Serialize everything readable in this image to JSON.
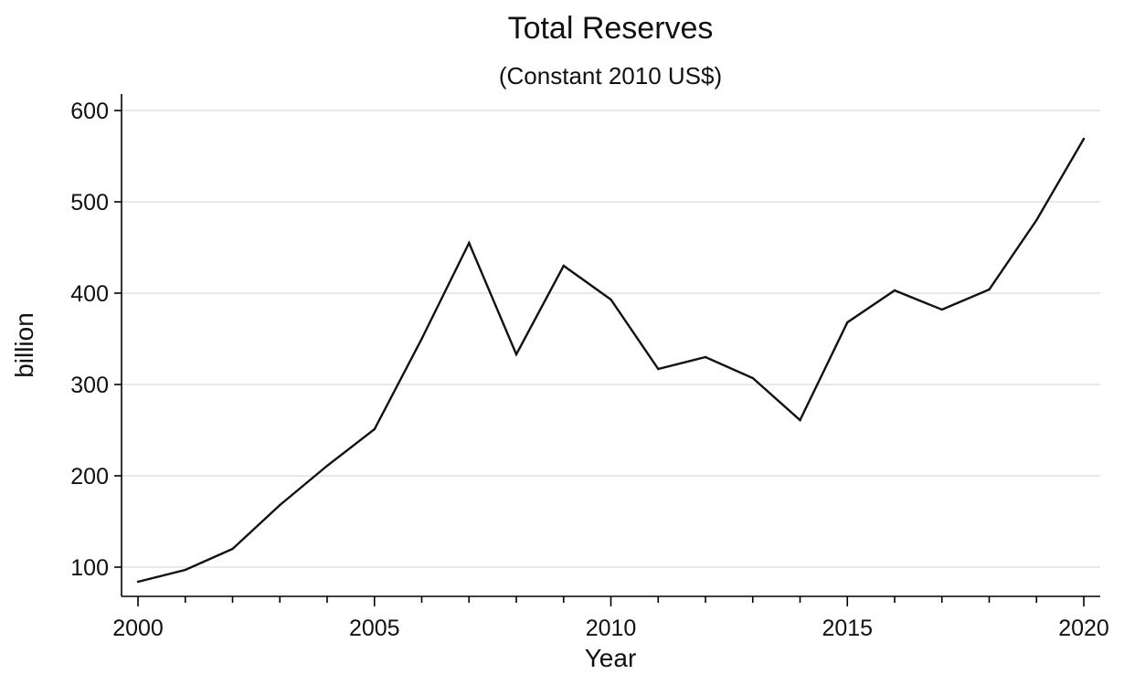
{
  "chart_data": {
    "type": "line",
    "title": "Total Reserves",
    "subtitle": "(Constant 2010 US$)",
    "xlabel": "Year",
    "ylabel": "billion",
    "xlim": [
      2000,
      2020
    ],
    "ylim": [
      68,
      618
    ],
    "xticks": [
      2000,
      2005,
      2010,
      2015,
      2020
    ],
    "yticks": [
      100,
      200,
      300,
      400,
      500,
      600
    ],
    "x_minor_ticks": [
      2001,
      2002,
      2003,
      2004,
      2006,
      2007,
      2008,
      2009,
      2011,
      2012,
      2013,
      2014,
      2016,
      2017,
      2018,
      2019
    ],
    "grid": "horizontal",
    "legend": "none",
    "series": [
      {
        "color": "#111111",
        "x": [
          2000,
          2001,
          2002,
          2003,
          2004,
          2005,
          2006,
          2007,
          2008,
          2009,
          2010,
          2011,
          2012,
          2013,
          2014,
          2015,
          2016,
          2017,
          2018,
          2019,
          2020
        ],
        "values": [
          84,
          97,
          120,
          168,
          211,
          251,
          350,
          455,
          333,
          430,
          393,
          317,
          330,
          307,
          261,
          368,
          403,
          382,
          404,
          480,
          569
        ]
      }
    ]
  }
}
